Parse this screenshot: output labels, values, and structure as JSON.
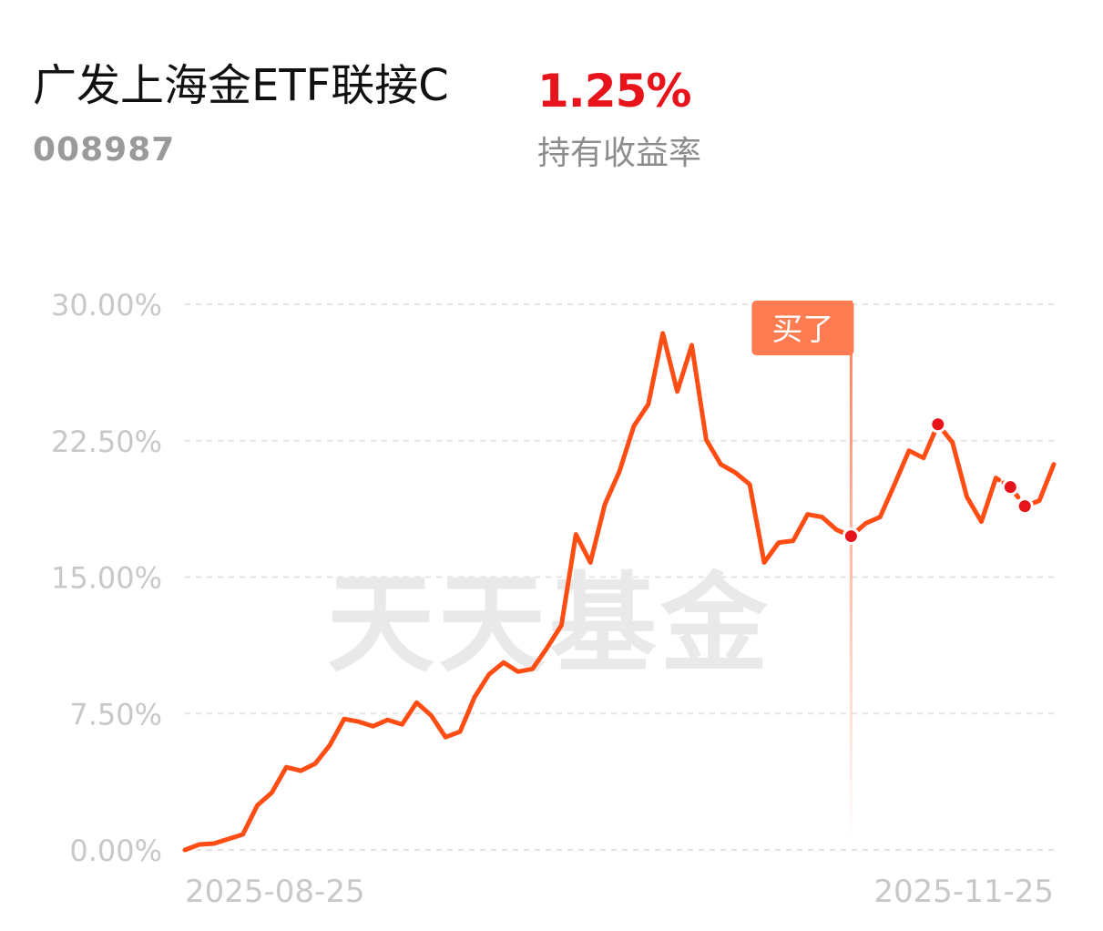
{
  "header": {
    "fund_name": "广发上海金ETF联接C",
    "fund_code": "008987",
    "holding_return": "1.25%",
    "holding_return_label": "持有收益率"
  },
  "watermark": "天天基金",
  "colors": {
    "line": "#ff4d14",
    "marker_fill": "#e8141c",
    "buy_tag": "#ff7b52",
    "return_positive": "#e8141c",
    "grid": "#e3e3e3",
    "axis_text": "#c8c8c8"
  },
  "chart_data": {
    "type": "line",
    "title": "",
    "xlabel": "",
    "ylabel": "",
    "x_tick_labels": [
      "2025-08-25",
      "2025-11-25"
    ],
    "y_tick_labels": [
      "30.00%",
      "22.50%",
      "15.00%",
      "7.50%",
      "0.00%"
    ],
    "y_ticks": [
      30,
      22.5,
      15,
      7.5,
      0
    ],
    "ylim": [
      0,
      30
    ],
    "grid": true,
    "unit": "%",
    "series": [
      {
        "values": [
          0.0,
          0.3,
          0.35,
          0.6,
          0.85,
          2.45,
          3.15,
          4.55,
          4.35,
          4.75,
          5.75,
          7.2,
          7.05,
          6.8,
          7.15,
          6.9,
          8.1,
          7.4,
          6.2,
          6.5,
          8.4,
          9.65,
          10.3,
          9.8,
          9.95,
          11.1,
          12.35,
          17.35,
          15.8,
          19.0,
          20.8,
          23.3,
          24.5,
          28.4,
          25.2,
          27.75,
          22.55,
          21.2,
          20.75,
          20.1,
          15.8,
          16.9,
          17.0,
          18.45,
          18.3,
          17.6,
          17.25,
          17.95,
          18.3,
          20.1,
          21.95,
          21.55,
          23.4,
          22.4,
          19.4,
          18.05,
          20.45,
          19.95,
          18.9,
          19.2,
          21.2
        ]
      }
    ],
    "buy_marker": {
      "label": "买了",
      "index": 46
    },
    "highlight_point_indices": [
      46,
      52,
      57,
      58
    ],
    "dotted_segment_indices": [
      [
        56,
        57
      ],
      [
        57,
        58
      ]
    ]
  }
}
